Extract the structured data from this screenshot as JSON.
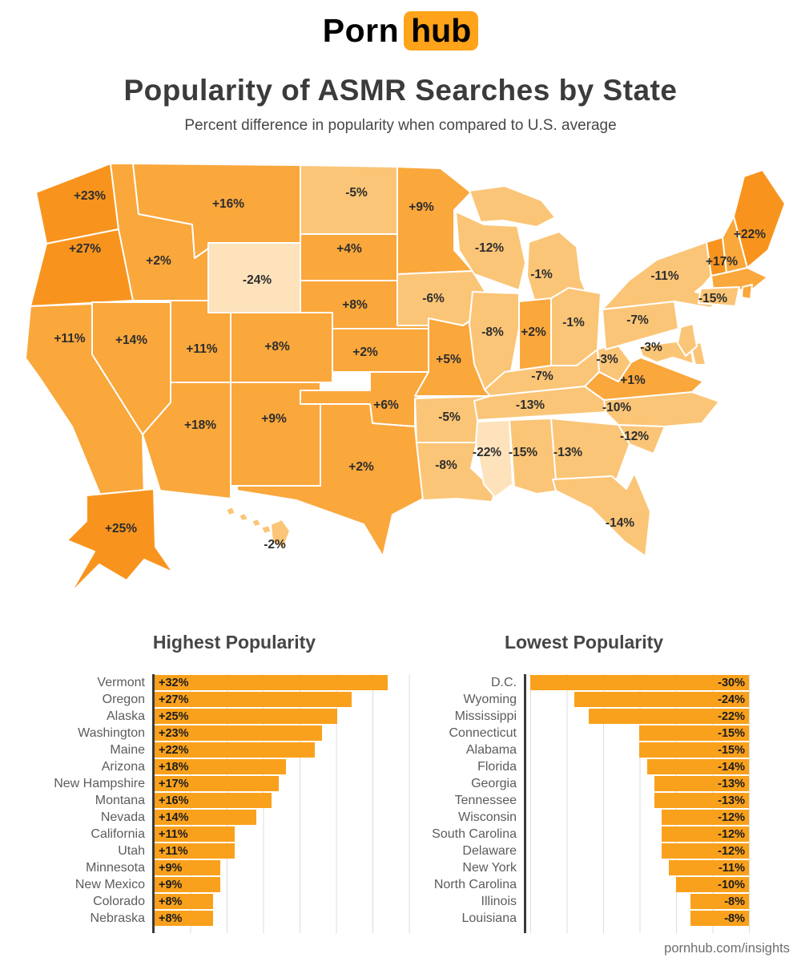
{
  "logo": {
    "part1": "Porn",
    "part2": "hub"
  },
  "title": "Popularity of ASMR Searches by State",
  "subtitle": "Percent difference in popularity when compared to U.S. average",
  "footer": {
    "url": "pornhub.com/insights"
  },
  "colors": {
    "brand_orange": "#FFA31A",
    "bar_orange": "#F9A11C",
    "tier_strong": "#F8941D",
    "tier_mid": "#FAA73C",
    "tier_light": "#FBC577",
    "tier_pale": "#FDE2BC",
    "grid": "#DCDCDC",
    "axis": "#3A3A3A",
    "title_text": "#3B3B3B",
    "label_text": "#5C5C5C",
    "value_text": "#1C1C1C",
    "map_label": "#2D2D2D"
  },
  "map": {
    "states": [
      {
        "id": "WA",
        "label": "+23%",
        "tier": "strong"
      },
      {
        "id": "OR",
        "label": "+27%",
        "tier": "strong"
      },
      {
        "id": "CA",
        "label": "+11%",
        "tier": "mid"
      },
      {
        "id": "NV",
        "label": "+14%",
        "tier": "mid"
      },
      {
        "id": "ID",
        "label": "+2%",
        "tier": "mid"
      },
      {
        "id": "MT",
        "label": "+16%",
        "tier": "mid"
      },
      {
        "id": "WY",
        "label": "-24%",
        "tier": "pale"
      },
      {
        "id": "UT",
        "label": "+11%",
        "tier": "mid"
      },
      {
        "id": "AZ",
        "label": "+18%",
        "tier": "mid"
      },
      {
        "id": "CO",
        "label": "+8%",
        "tier": "mid"
      },
      {
        "id": "NM",
        "label": "+9%",
        "tier": "mid"
      },
      {
        "id": "ND",
        "label": "-5%",
        "tier": "light"
      },
      {
        "id": "SD",
        "label": "+4%",
        "tier": "mid"
      },
      {
        "id": "NE",
        "label": "+8%",
        "tier": "mid"
      },
      {
        "id": "KS",
        "label": "+2%",
        "tier": "mid"
      },
      {
        "id": "OK",
        "label": "+6%",
        "tier": "mid"
      },
      {
        "id": "TX",
        "label": "+2%",
        "tier": "mid"
      },
      {
        "id": "MN",
        "label": "+9%",
        "tier": "mid"
      },
      {
        "id": "IA",
        "label": "-6%",
        "tier": "light"
      },
      {
        "id": "MO",
        "label": "+5%",
        "tier": "mid"
      },
      {
        "id": "AR",
        "label": "-5%",
        "tier": "light"
      },
      {
        "id": "LA",
        "label": "-8%",
        "tier": "light"
      },
      {
        "id": "WI",
        "label": "-12%",
        "tier": "light"
      },
      {
        "id": "IL",
        "label": "-8%",
        "tier": "light"
      },
      {
        "id": "MI",
        "label": "-1%",
        "tier": "light"
      },
      {
        "id": "IN",
        "label": "+2%",
        "tier": "mid"
      },
      {
        "id": "OH",
        "label": "-1%",
        "tier": "light"
      },
      {
        "id": "KY",
        "label": "-7%",
        "tier": "light"
      },
      {
        "id": "TN",
        "label": "-13%",
        "tier": "light"
      },
      {
        "id": "MS",
        "label": "-22%",
        "tier": "pale"
      },
      {
        "id": "AL",
        "label": "-15%",
        "tier": "light"
      },
      {
        "id": "GA",
        "label": "-13%",
        "tier": "light"
      },
      {
        "id": "FL",
        "label": "-14%",
        "tier": "light"
      },
      {
        "id": "SC",
        "label": "-12%",
        "tier": "light"
      },
      {
        "id": "NC",
        "label": "-10%",
        "tier": "light"
      },
      {
        "id": "VA",
        "label": "+1%",
        "tier": "mid"
      },
      {
        "id": "WV",
        "label": "-3%",
        "tier": "light"
      },
      {
        "id": "MD",
        "label": "-3%",
        "tier": "light"
      },
      {
        "id": "DE",
        "label": "",
        "tier": "light"
      },
      {
        "id": "NJ",
        "label": "",
        "tier": "light"
      },
      {
        "id": "PA",
        "label": "-7%",
        "tier": "light"
      },
      {
        "id": "NY",
        "label": "-11%",
        "tier": "light"
      },
      {
        "id": "VT",
        "label": "",
        "tier": "strong"
      },
      {
        "id": "NH",
        "label": "+17%",
        "tier": "mid"
      },
      {
        "id": "ME",
        "label": "+22%",
        "tier": "strong"
      },
      {
        "id": "MA",
        "label": "",
        "tier": "mid"
      },
      {
        "id": "RI",
        "label": "",
        "tier": "mid"
      },
      {
        "id": "CT",
        "label": "-15%",
        "tier": "light"
      },
      {
        "id": "AK",
        "label": "+25%",
        "tier": "strong"
      },
      {
        "id": "HI",
        "label": "-2%",
        "tier": "light"
      }
    ]
  },
  "charts": {
    "highest": {
      "title": "Highest Popularity",
      "rows": [
        {
          "state": "Vermont",
          "label": "+32%",
          "value": 32
        },
        {
          "state": "Oregon",
          "label": "+27%",
          "value": 27
        },
        {
          "state": "Alaska",
          "label": "+25%",
          "value": 25
        },
        {
          "state": "Washington",
          "label": "+23%",
          "value": 23
        },
        {
          "state": "Maine",
          "label": "+22%",
          "value": 22
        },
        {
          "state": "Arizona",
          "label": "+18%",
          "value": 18
        },
        {
          "state": "New Hampshire",
          "label": "+17%",
          "value": 17
        },
        {
          "state": "Montana",
          "label": "+16%",
          "value": 16
        },
        {
          "state": "Nevada",
          "label": "+14%",
          "value": 14
        },
        {
          "state": "California",
          "label": "+11%",
          "value": 11
        },
        {
          "state": "Utah",
          "label": "+11%",
          "value": 11
        },
        {
          "state": "Minnesota",
          "label": "+9%",
          "value": 9
        },
        {
          "state": "New Mexico",
          "label": "+9%",
          "value": 9
        },
        {
          "state": "Colorado",
          "label": "+8%",
          "value": 8
        },
        {
          "state": "Nebraska",
          "label": "+8%",
          "value": 8
        }
      ]
    },
    "lowest": {
      "title": "Lowest Popularity",
      "rows": [
        {
          "state": "D.C.",
          "label": "-30%",
          "value": -30
        },
        {
          "state": "Wyoming",
          "label": "-24%",
          "value": -24
        },
        {
          "state": "Mississippi",
          "label": "-22%",
          "value": -22
        },
        {
          "state": "Connecticut",
          "label": "-15%",
          "value": -15
        },
        {
          "state": "Alabama",
          "label": "-15%",
          "value": -15
        },
        {
          "state": "Florida",
          "label": "-14%",
          "value": -14
        },
        {
          "state": "Georgia",
          "label": "-13%",
          "value": -13
        },
        {
          "state": "Tennessee",
          "label": "-13%",
          "value": -13
        },
        {
          "state": "Wisconsin",
          "label": "-12%",
          "value": -12
        },
        {
          "state": "South Carolina",
          "label": "-12%",
          "value": -12
        },
        {
          "state": "Delaware",
          "label": "-12%",
          "value": -12
        },
        {
          "state": "New York",
          "label": "-11%",
          "value": -11
        },
        {
          "state": "North Carolina",
          "label": "-10%",
          "value": -10
        },
        {
          "state": "Illinois",
          "label": "-8%",
          "value": -8
        },
        {
          "state": "Louisiana",
          "label": "-8%",
          "value": -8
        }
      ]
    }
  },
  "chart_data": [
    {
      "type": "choropleth",
      "title": "Popularity of ASMR Searches by State",
      "subtitle": "Percent difference in popularity when compared to U.S. average",
      "unit": "%",
      "values": {
        "WA": 23,
        "OR": 27,
        "CA": 11,
        "NV": 14,
        "ID": 2,
        "MT": 16,
        "WY": -24,
        "UT": 11,
        "AZ": 18,
        "CO": 8,
        "NM": 9,
        "ND": -5,
        "SD": 4,
        "NE": 8,
        "KS": 2,
        "OK": 6,
        "TX": 2,
        "MN": 9,
        "IA": -6,
        "MO": 5,
        "AR": -5,
        "LA": -8,
        "WI": -12,
        "IL": -8,
        "MI": -1,
        "IN": 2,
        "OH": -1,
        "KY": -7,
        "TN": -13,
        "MS": -22,
        "AL": -15,
        "GA": -13,
        "FL": -14,
        "SC": -12,
        "NC": -10,
        "VA": 1,
        "WV": -3,
        "MD": -3,
        "PA": -7,
        "NY": -11,
        "NH": 17,
        "ME": 22,
        "CT": -15,
        "AK": 25,
        "HI": -2
      }
    },
    {
      "type": "bar",
      "title": "Highest Popularity",
      "categories": [
        "Vermont",
        "Oregon",
        "Alaska",
        "Washington",
        "Maine",
        "Arizona",
        "New Hampshire",
        "Montana",
        "Nevada",
        "California",
        "Utah",
        "Minnesota",
        "New Mexico",
        "Colorado",
        "Nebraska"
      ],
      "values": [
        32,
        27,
        25,
        23,
        22,
        18,
        17,
        16,
        14,
        11,
        11,
        9,
        9,
        8,
        8
      ],
      "xlabel": "",
      "ylabel": "",
      "xlim": [
        0,
        36
      ],
      "grid_step": 5,
      "orientation": "horizontal"
    },
    {
      "type": "bar",
      "title": "Lowest Popularity",
      "categories": [
        "D.C.",
        "Wyoming",
        "Mississippi",
        "Connecticut",
        "Alabama",
        "Florida",
        "Georgia",
        "Tennessee",
        "Wisconsin",
        "South Carolina",
        "Delaware",
        "New York",
        "North Carolina",
        "Illinois",
        "Louisiana"
      ],
      "values": [
        -30,
        -24,
        -22,
        -15,
        -15,
        -14,
        -13,
        -13,
        -12,
        -12,
        -12,
        -11,
        -10,
        -8,
        -8
      ],
      "xlabel": "",
      "ylabel": "",
      "xlim": [
        -31,
        0
      ],
      "grid_step": 5,
      "orientation": "horizontal"
    }
  ]
}
